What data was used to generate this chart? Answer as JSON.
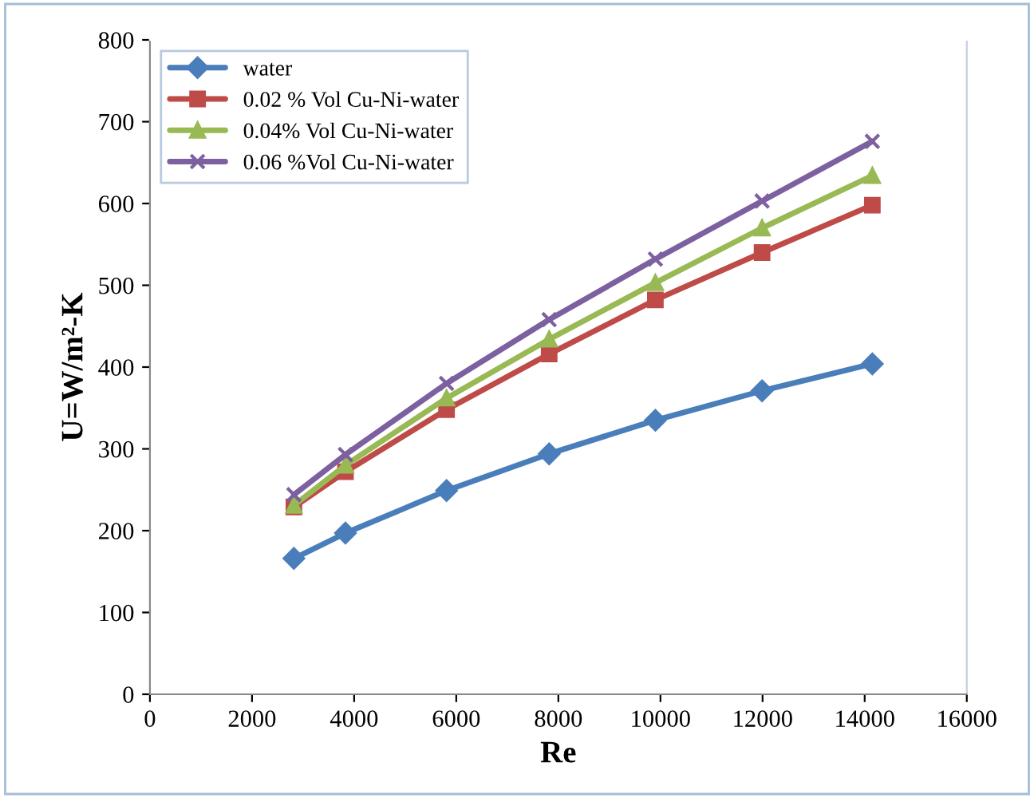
{
  "chart_data": {
    "type": "line",
    "xlabel": "Re",
    "ylabel": "U=W/m²-K",
    "x": [
      2820,
      3830,
      5810,
      7820,
      9900,
      11990,
      14150
    ],
    "xlim": [
      0,
      16000
    ],
    "xticks": [
      0,
      2000,
      4000,
      6000,
      8000,
      10000,
      12000,
      14000,
      16000
    ],
    "ylim": [
      0,
      800
    ],
    "yticks": [
      0,
      100,
      200,
      300,
      400,
      500,
      600,
      700,
      800
    ],
    "grid": false,
    "legend": "top left",
    "line_style": "solid",
    "series": [
      {
        "name": "water",
        "color": "#4a7ebb",
        "marker": "diamond",
        "values": [
          166,
          197,
          249,
          294,
          335,
          371,
          404
        ]
      },
      {
        "name": "0.02 % Vol Cu-Ni-water",
        "color": "#be4b48",
        "marker": "square",
        "values": [
          229,
          272,
          348,
          416,
          482,
          540,
          598
        ]
      },
      {
        "name": "0.04% Vol Cu-Ni-water",
        "color": "#98b954",
        "marker": "triangle",
        "values": [
          231,
          280,
          362,
          434,
          503,
          570,
          634
        ]
      },
      {
        "name": "0.06 %Vol Cu-Ni-water",
        "color": "#7d60a0",
        "marker": "cross",
        "values": [
          244,
          293,
          380,
          458,
          532,
          603,
          676
        ]
      }
    ]
  }
}
